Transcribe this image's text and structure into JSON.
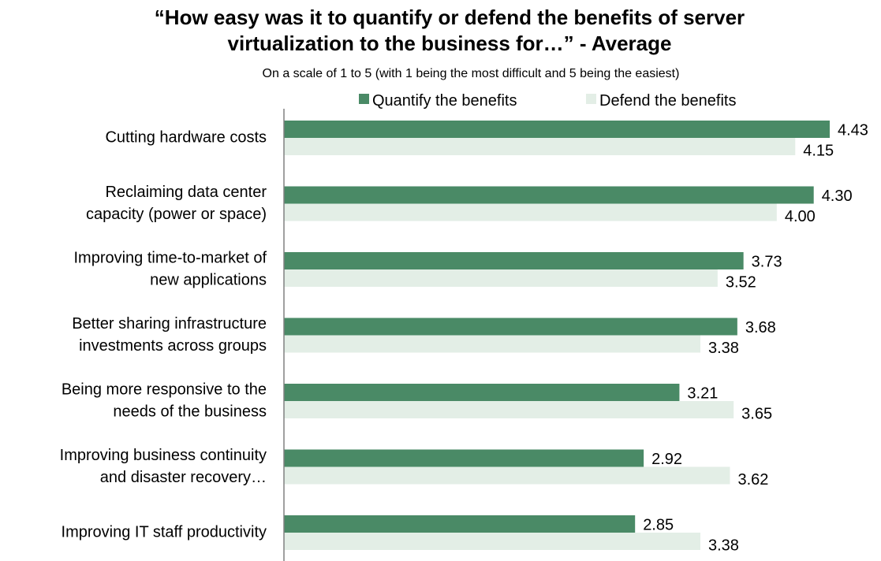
{
  "chart_data": {
    "type": "bar",
    "orientation": "horizontal",
    "title": "“How easy was it to quantify or defend the benefits of server virtualization to the business for…” - Average",
    "title_lines": [
      "“How easy was it to quantify or defend the benefits of server",
      "virtualization to the business for…” - Average"
    ],
    "subtitle": "On a scale of 1 to 5 (with 1 being the most difficult and 5 being the easiest)",
    "categories": [
      "Cutting hardware costs",
      "Reclaiming data center capacity (power or space)",
      "Improving time-to-market of new applications",
      "Better sharing infrastructure investments across groups",
      "Being more responsive to the needs of the business",
      "Improving business continuity and disaster recovery…",
      "Improving IT staff productivity"
    ],
    "category_lines": [
      [
        "Cutting hardware costs"
      ],
      [
        "Reclaiming data center",
        "capacity (power or space)"
      ],
      [
        "Improving time-to-market of",
        "new applications"
      ],
      [
        "Better sharing infrastructure",
        "investments across groups"
      ],
      [
        "Being more responsive to the",
        "needs of the business"
      ],
      [
        "Improving business continuity",
        "and disaster recovery…"
      ],
      [
        "Improving IT staff productivity"
      ]
    ],
    "series": [
      {
        "name": "Quantify the benefits",
        "color": "#4a8a66",
        "values": [
          4.43,
          4.3,
          3.73,
          3.68,
          3.21,
          2.92,
          2.85
        ],
        "labels": [
          "4.43",
          "4.30",
          "3.73",
          "3.68",
          "3.21",
          "2.92",
          "2.85"
        ]
      },
      {
        "name": "Defend the benefits",
        "color": "#e3eee6",
        "values": [
          4.15,
          4.0,
          3.52,
          3.38,
          3.65,
          3.62,
          3.38
        ],
        "labels": [
          "4.15",
          "4.00",
          "3.52",
          "3.38",
          "3.65",
          "3.62",
          "3.38"
        ]
      }
    ],
    "xlim": [
      0,
      4.5
    ],
    "grid": false,
    "legend_position": "top"
  }
}
